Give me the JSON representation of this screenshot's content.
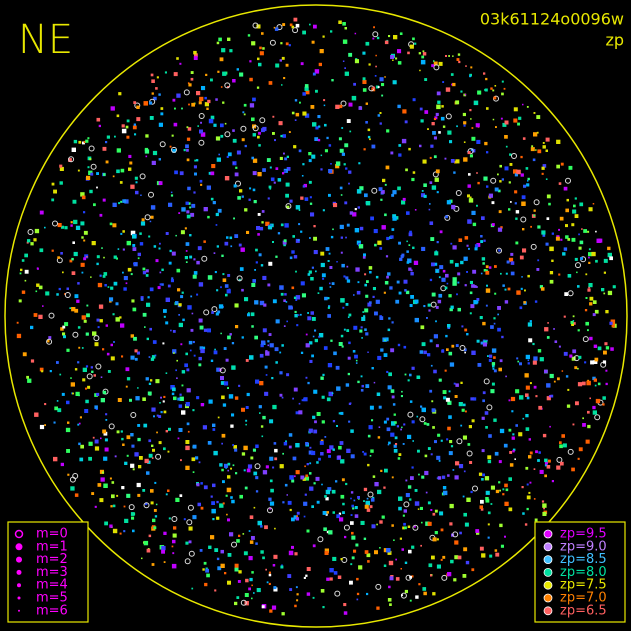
{
  "corner_label": "NE",
  "image_id": "03k61124o0096w",
  "color_key": "zp",
  "magnitude_legend": [
    "m=0",
    "m=1",
    "m=2",
    "m=3",
    "m=4",
    "m=5",
    "m=6"
  ],
  "zeropoint_legend": [
    "zp=9.5",
    "zp=9.0",
    "zp=8.5",
    "zp=8.0",
    "zp=7.5",
    "zp=7.0",
    "zp=6.5"
  ]
}
